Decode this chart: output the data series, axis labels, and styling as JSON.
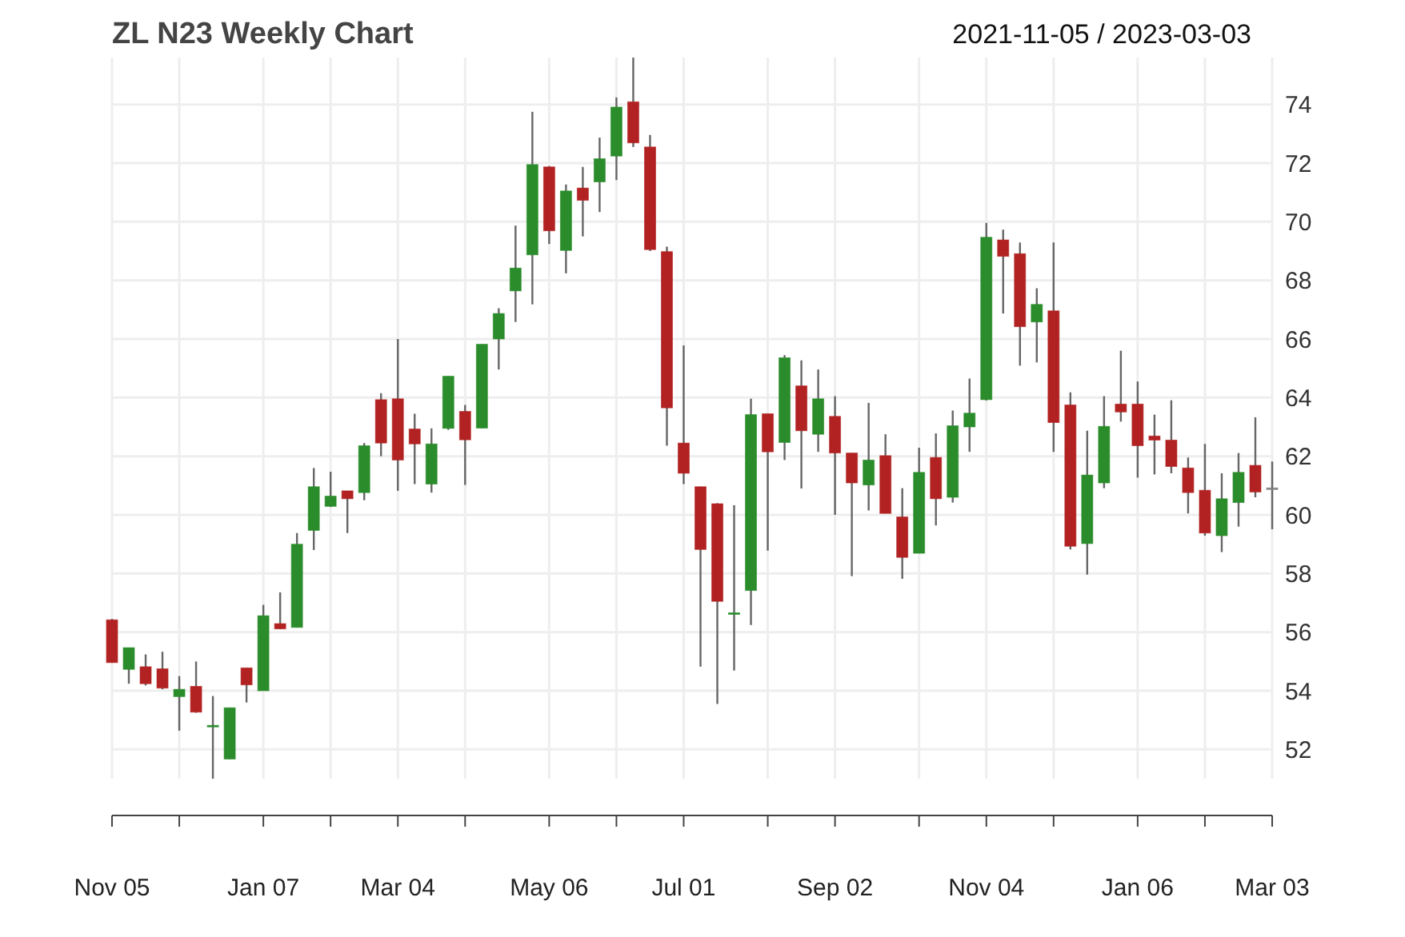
{
  "chart_data": {
    "type": "candlestick",
    "title": "ZL N23 Weekly Chart",
    "subtitle": "2021-11-05 / 2023-03-03",
    "x": [
      "2021-11-05",
      "2021-11-12",
      "2021-11-19",
      "2021-11-26",
      "2021-12-03",
      "2021-12-10",
      "2021-12-17",
      "2021-12-24",
      "2021-12-31",
      "2022-01-07",
      "2022-01-14",
      "2022-01-21",
      "2022-01-28",
      "2022-02-04",
      "2022-02-11",
      "2022-02-18",
      "2022-02-25",
      "2022-03-04",
      "2022-03-11",
      "2022-03-18",
      "2022-03-25",
      "2022-04-01",
      "2022-04-08",
      "2022-04-15",
      "2022-04-22",
      "2022-04-29",
      "2022-05-06",
      "2022-05-13",
      "2022-05-20",
      "2022-05-27",
      "2022-06-03",
      "2022-06-10",
      "2022-06-17",
      "2022-06-24",
      "2022-07-01",
      "2022-07-08",
      "2022-07-15",
      "2022-07-22",
      "2022-07-29",
      "2022-08-05",
      "2022-08-12",
      "2022-08-19",
      "2022-08-26",
      "2022-09-02",
      "2022-09-09",
      "2022-09-16",
      "2022-09-23",
      "2022-09-30",
      "2022-10-07",
      "2022-10-14",
      "2022-10-21",
      "2022-10-28",
      "2022-11-04",
      "2022-11-11",
      "2022-11-18",
      "2022-11-25",
      "2022-12-02",
      "2022-12-09",
      "2022-12-16",
      "2022-12-23",
      "2022-12-30",
      "2023-01-06",
      "2023-01-13",
      "2023-01-20",
      "2023-01-27",
      "2023-02-03",
      "2023-02-10",
      "2023-02-17",
      "2023-02-24",
      "2023-03-03"
    ],
    "ohlc": [
      [
        56.42,
        56.45,
        54.96,
        54.96
      ],
      [
        54.73,
        55.47,
        54.24,
        55.47
      ],
      [
        54.82,
        55.24,
        54.18,
        54.24
      ],
      [
        54.75,
        55.33,
        54.05,
        54.09
      ],
      [
        53.8,
        54.5,
        52.64,
        54.05
      ],
      [
        54.15,
        55.0,
        53.25,
        53.27
      ],
      [
        52.8,
        53.82,
        51.0,
        52.82
      ],
      [
        51.67,
        53.42,
        51.67,
        53.42
      ],
      [
        54.78,
        54.78,
        53.6,
        54.2
      ],
      [
        54.0,
        56.93,
        54.0,
        56.56
      ],
      [
        56.29,
        57.36,
        56.1,
        56.11
      ],
      [
        56.16,
        59.38,
        56.16,
        59.0
      ],
      [
        59.47,
        61.6,
        58.8,
        60.96
      ],
      [
        60.29,
        61.47,
        60.27,
        60.64
      ],
      [
        60.82,
        60.82,
        59.38,
        60.55
      ],
      [
        60.76,
        62.45,
        60.5,
        62.36
      ],
      [
        63.93,
        64.15,
        62.0,
        62.45
      ],
      [
        63.96,
        66.0,
        60.82,
        61.87
      ],
      [
        62.93,
        63.45,
        61.05,
        62.42
      ],
      [
        61.05,
        62.95,
        60.76,
        62.42
      ],
      [
        62.95,
        64.73,
        62.9,
        64.73
      ],
      [
        63.53,
        63.75,
        61.02,
        62.56
      ],
      [
        62.96,
        65.82,
        62.96,
        65.82
      ],
      [
        66.0,
        67.05,
        64.96,
        66.87
      ],
      [
        67.64,
        69.87,
        66.58,
        68.42
      ],
      [
        68.87,
        73.75,
        67.18,
        71.95
      ],
      [
        71.87,
        71.9,
        69.24,
        69.69
      ],
      [
        69.02,
        71.27,
        68.24,
        71.05
      ],
      [
        71.15,
        71.87,
        69.5,
        70.73
      ],
      [
        71.36,
        72.87,
        70.33,
        72.15
      ],
      [
        72.24,
        74.24,
        71.42,
        73.91
      ],
      [
        74.09,
        75.6,
        72.55,
        72.69
      ],
      [
        72.55,
        72.96,
        69.0,
        69.05
      ],
      [
        68.98,
        69.15,
        62.36,
        63.65
      ],
      [
        62.45,
        65.78,
        61.05,
        61.42
      ],
      [
        60.96,
        60.96,
        54.82,
        58.82
      ],
      [
        60.38,
        60.4,
        53.55,
        57.05
      ],
      [
        56.62,
        60.33,
        54.69,
        56.66
      ],
      [
        57.42,
        63.96,
        56.24,
        63.42
      ],
      [
        63.45,
        63.45,
        58.78,
        62.15
      ],
      [
        62.47,
        65.45,
        61.87,
        65.36
      ],
      [
        64.4,
        65.27,
        60.9,
        62.87
      ],
      [
        62.75,
        64.96,
        62.15,
        63.96
      ],
      [
        63.36,
        64.05,
        60.0,
        62.11
      ],
      [
        62.11,
        62.11,
        57.91,
        61.09
      ],
      [
        61.02,
        63.82,
        60.15,
        61.87
      ],
      [
        62.02,
        62.75,
        60.05,
        60.05
      ],
      [
        59.93,
        60.91,
        57.82,
        58.55
      ],
      [
        58.69,
        62.29,
        58.69,
        61.45
      ],
      [
        61.96,
        62.78,
        59.64,
        60.55
      ],
      [
        60.6,
        63.56,
        60.42,
        63.04
      ],
      [
        63.0,
        64.65,
        62.15,
        63.47
      ],
      [
        63.93,
        69.96,
        63.9,
        69.47
      ],
      [
        69.38,
        69.73,
        66.87,
        68.82
      ],
      [
        68.91,
        69.29,
        65.09,
        66.42
      ],
      [
        66.58,
        67.73,
        65.2,
        67.18
      ],
      [
        66.96,
        69.29,
        62.15,
        63.15
      ],
      [
        63.75,
        64.18,
        58.82,
        58.93
      ],
      [
        59.02,
        62.87,
        57.96,
        61.36
      ],
      [
        61.09,
        64.05,
        60.91,
        63.02
      ],
      [
        63.78,
        65.6,
        63.18,
        63.51
      ],
      [
        63.78,
        64.55,
        61.27,
        62.36
      ],
      [
        62.69,
        63.42,
        61.38,
        62.55
      ],
      [
        62.55,
        63.91,
        61.42,
        61.65
      ],
      [
        61.6,
        61.96,
        60.05,
        60.76
      ],
      [
        60.84,
        62.42,
        59.29,
        59.38
      ],
      [
        59.29,
        61.42,
        58.73,
        60.55
      ],
      [
        60.42,
        62.11,
        59.6,
        61.45
      ],
      [
        61.69,
        63.33,
        60.6,
        60.78
      ],
      [
        60.9,
        61.82,
        59.51,
        60.92
      ]
    ],
    "colors": [
      "#b22222",
      "#2a8c2a",
      "#b22222",
      "#b22222",
      "#2a8c2a",
      "#b22222",
      "#2a8c2a",
      "#2a8c2a",
      "#b22222",
      "#2a8c2a",
      "#b22222",
      "#2a8c2a",
      "#2a8c2a",
      "#2a8c2a",
      "#b22222",
      "#2a8c2a",
      "#b22222",
      "#b22222",
      "#b22222",
      "#2a8c2a",
      "#2a8c2a",
      "#b22222",
      "#2a8c2a",
      "#2a8c2a",
      "#2a8c2a",
      "#2a8c2a",
      "#b22222",
      "#2a8c2a",
      "#b22222",
      "#2a8c2a",
      "#2a8c2a",
      "#b22222",
      "#b22222",
      "#b22222",
      "#b22222",
      "#b22222",
      "#b22222",
      "#2a8c2a",
      "#2a8c2a",
      "#b22222",
      "#2a8c2a",
      "#b22222",
      "#2a8c2a",
      "#b22222",
      "#b22222",
      "#2a8c2a",
      "#b22222",
      "#b22222",
      "#2a8c2a",
      "#b22222",
      "#2a8c2a",
      "#2a8c2a",
      "#2a8c2a",
      "#b22222",
      "#b22222",
      "#2a8c2a",
      "#b22222",
      "#b22222",
      "#2a8c2a",
      "#2a8c2a",
      "#b22222",
      "#b22222",
      "#b22222",
      "#b22222",
      "#b22222",
      "#b22222",
      "#2a8c2a",
      "#2a8c2a",
      "#b22222",
      "#808080"
    ],
    "xlim": [
      "2021-11-05",
      "2023-03-03"
    ],
    "xticks": [
      {
        "value": "2021-11-05",
        "label": "Nov 05"
      },
      {
        "value": "2021-12-03",
        "label": null
      },
      {
        "value": "2022-01-07",
        "label": "Jan 07"
      },
      {
        "value": "2022-02-04",
        "label": null
      },
      {
        "value": "2022-03-04",
        "label": "Mar 04"
      },
      {
        "value": "2022-04-01",
        "label": null
      },
      {
        "value": "2022-05-06",
        "label": "May 06"
      },
      {
        "value": "2022-06-03",
        "label": null
      },
      {
        "value": "2022-07-01",
        "label": "Jul 01"
      },
      {
        "value": "2022-08-05",
        "label": null
      },
      {
        "value": "2022-09-02",
        "label": "Sep 02"
      },
      {
        "value": "2022-10-07",
        "label": null
      },
      {
        "value": "2022-11-04",
        "label": "Nov 04"
      },
      {
        "value": "2022-12-02",
        "label": null
      },
      {
        "value": "2023-01-06",
        "label": "Jan 06"
      },
      {
        "value": "2023-02-03",
        "label": null
      },
      {
        "value": "2023-03-03",
        "label": "Mar 03"
      }
    ],
    "ylim": [
      51,
      75.6
    ],
    "yticks": [
      52,
      54,
      56,
      58,
      60,
      62,
      64,
      66,
      68,
      70,
      72,
      74
    ],
    "grid": true
  }
}
